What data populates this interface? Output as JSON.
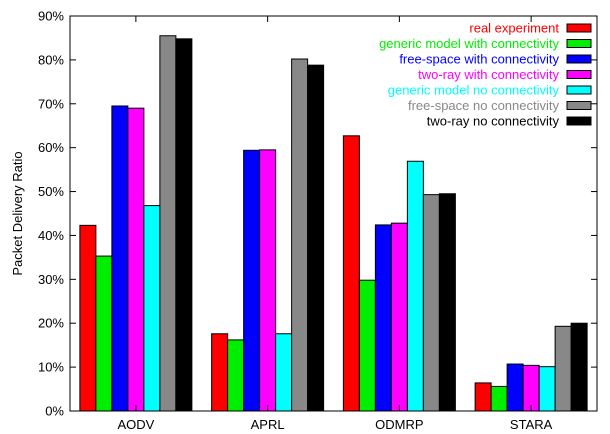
{
  "chart_data": {
    "type": "bar",
    "ylabel": "Packet Delivery Ratio",
    "ylim": [
      0,
      90
    ],
    "yticks": [
      "0%",
      "10%",
      "20%",
      "30%",
      "40%",
      "50%",
      "60%",
      "70%",
      "80%",
      "90%"
    ],
    "categories": [
      "AODV",
      "APRL",
      "ODMRP",
      "STARA"
    ],
    "legend_position": "top-right",
    "grid": false,
    "series": [
      {
        "name": "real experiment",
        "color": "#ff0000",
        "values": [
          42.3,
          17.6,
          62.7,
          6.4
        ]
      },
      {
        "name": "generic model with connectivity",
        "color": "#00ee00",
        "values": [
          35.3,
          16.2,
          29.8,
          5.6
        ]
      },
      {
        "name": "free-space with connectivity",
        "color": "#0000ff",
        "values": [
          69.5,
          59.4,
          42.4,
          10.7
        ]
      },
      {
        "name": "two-ray with connectivity",
        "color": "#ff00ff",
        "values": [
          69.0,
          59.5,
          42.8,
          10.4
        ]
      },
      {
        "name": "generic model no connectivity",
        "color": "#00ffff",
        "values": [
          46.8,
          17.6,
          56.9,
          10.1
        ]
      },
      {
        "name": "free-space no connectivity",
        "color": "#888888",
        "values": [
          85.5,
          80.2,
          49.3,
          19.3
        ]
      },
      {
        "name": "two-ray no connectivity",
        "color": "#000000",
        "values": [
          84.8,
          78.8,
          49.5,
          20.0
        ]
      }
    ]
  }
}
